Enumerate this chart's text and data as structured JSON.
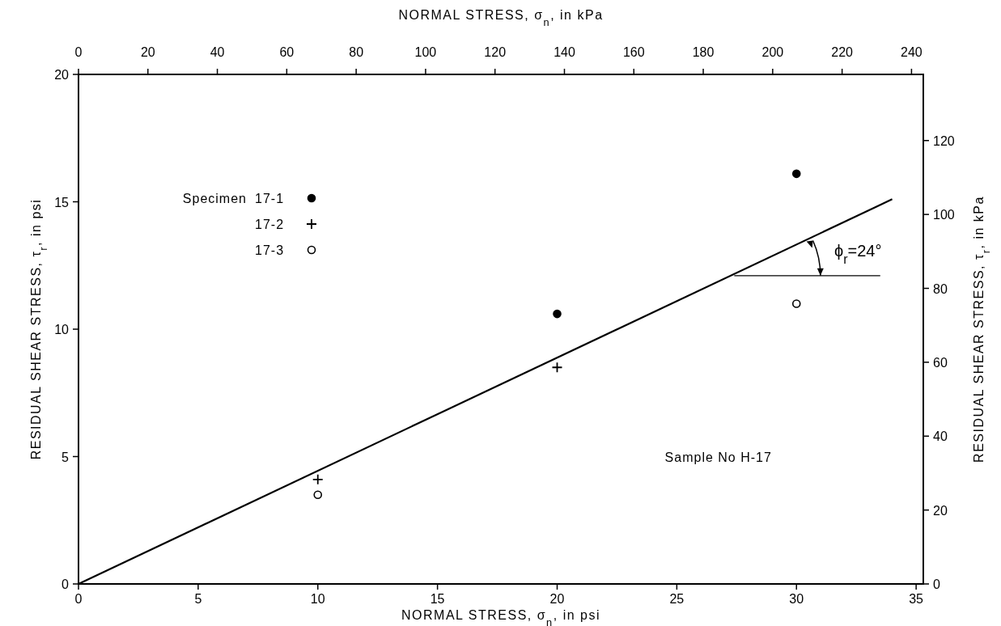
{
  "chart_data": {
    "type": "scatter",
    "xlabel": "NORMAL STRESS, σ$_{n}$, in psi",
    "x2label": "NORMAL STRESS, σ$_{n}$, in kPa",
    "ylabel": "RESIDUAL SHEAR STRESS, τ$_{r}$, in psi",
    "y2label": "RESIDUAL SHEAR STRESS, τ$_{r}$, in kPa",
    "legend_title": "Specimen",
    "xlim": [
      0,
      35.3
    ],
    "xticks": [
      0,
      5,
      10,
      15,
      20,
      25,
      30,
      35
    ],
    "x2lim": [
      0,
      243.4
    ],
    "x2ticks": [
      0,
      20,
      40,
      60,
      80,
      100,
      120,
      140,
      160,
      180,
      200,
      220,
      240
    ],
    "ylim": [
      0,
      20
    ],
    "yticks": [
      0,
      5,
      10,
      15,
      20
    ],
    "y2lim": [
      0,
      137.9
    ],
    "y2ticks": [
      0,
      20,
      40,
      60,
      80,
      100,
      120
    ],
    "grid": false,
    "legend": "top left",
    "series": [
      {
        "name": "17-1",
        "color": "#000000",
        "marker": "circle",
        "x": [
          20,
          30
        ],
        "values": [
          10.6,
          16.1
        ]
      },
      {
        "name": "17-2",
        "color": "#000000",
        "marker": "cross",
        "x": [
          10,
          20
        ],
        "values": [
          4.1,
          8.5
        ]
      },
      {
        "name": "17-3",
        "color": "#000000",
        "marker": "circle-open",
        "x": [
          10,
          30
        ],
        "values": [
          3.5,
          11.0
        ]
      },
      {
        "type": "line",
        "color": "#000000",
        "marker": "none",
        "line_style": "solid",
        "x": [
          0,
          34
        ],
        "values": [
          0,
          15.1
        ]
      }
    ],
    "annotations": [
      {
        "text": "ϕ$_{r}$=24°",
        "x": 30.5,
        "y": 13.5
      },
      "Sample No H-17"
    ]
  }
}
